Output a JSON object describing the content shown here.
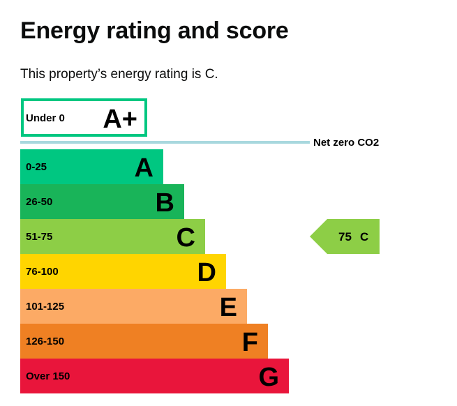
{
  "page": {
    "title": "Energy rating and score",
    "intro": "This property’s energy rating is C."
  },
  "chart_data": {
    "type": "bar",
    "title": "",
    "top_band": {
      "range": "Under 0",
      "letter": "A+",
      "color": "#00c781"
    },
    "net_zero": {
      "label": "Net zero CO2",
      "color": "#a8d8de"
    },
    "categories": [
      "A",
      "B",
      "C",
      "D",
      "E",
      "F",
      "G"
    ],
    "bands": [
      {
        "letter": "A",
        "range": "0-25",
        "color": "#00c781"
      },
      {
        "letter": "B",
        "range": "26-50",
        "color": "#19b459"
      },
      {
        "letter": "C",
        "range": "51-75",
        "color": "#8dce46"
      },
      {
        "letter": "D",
        "range": "76-100",
        "color": "#ffd500"
      },
      {
        "letter": "E",
        "range": "101-125",
        "color": "#fcaa65"
      },
      {
        "letter": "F",
        "range": "126-150",
        "color": "#ef8023"
      },
      {
        "letter": "G",
        "range": "Over 150",
        "color": "#e9153b"
      }
    ],
    "current": {
      "score": 75,
      "rating": "C",
      "color": "#8dce46"
    }
  }
}
